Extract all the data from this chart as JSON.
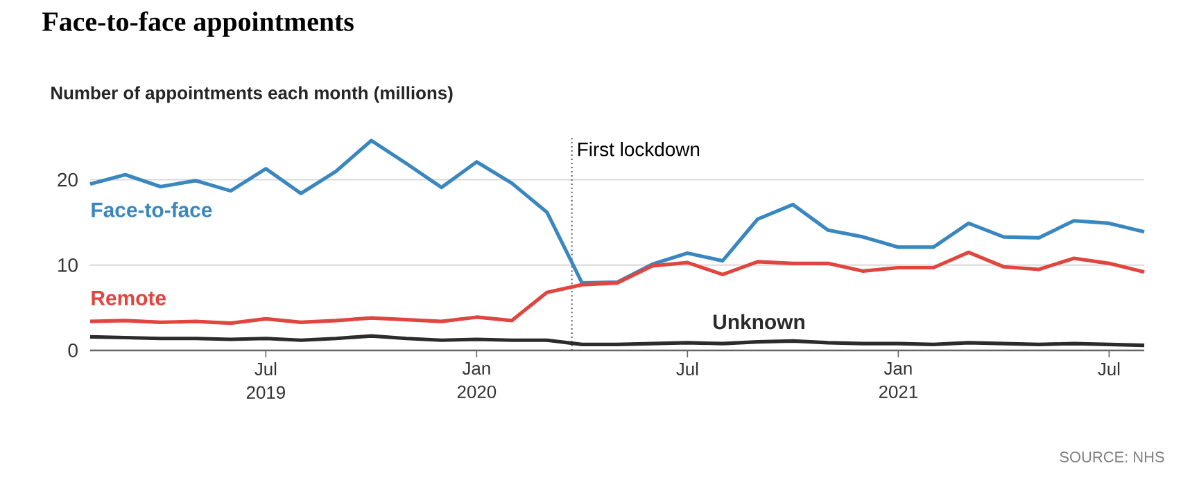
{
  "chart_data": {
    "type": "line",
    "title": "Face-to-face appointments",
    "ylabel": "Number of appointments each month (millions)",
    "x": [
      "2019-02",
      "2019-03",
      "2019-04",
      "2019-05",
      "2019-06",
      "2019-07",
      "2019-08",
      "2019-09",
      "2019-10",
      "2019-11",
      "2019-12",
      "2020-01",
      "2020-02",
      "2020-03",
      "2020-04",
      "2020-05",
      "2020-06",
      "2020-07",
      "2020-08",
      "2020-09",
      "2020-10",
      "2020-11",
      "2020-12",
      "2021-01",
      "2021-02",
      "2021-03",
      "2021-04",
      "2021-05",
      "2021-06",
      "2021-07",
      "2021-08"
    ],
    "series": [
      {
        "name": "Face-to-face",
        "color": "#3a87c0",
        "values": [
          19.5,
          20.6,
          19.2,
          19.9,
          18.7,
          21.3,
          18.4,
          21.0,
          24.6,
          21.9,
          19.1,
          22.1,
          19.6,
          16.2,
          7.9,
          8.0,
          10.1,
          11.4,
          10.5,
          15.4,
          17.1,
          14.1,
          13.3,
          12.1,
          12.1,
          14.9,
          13.3,
          13.2,
          15.2,
          14.9,
          13.9
        ]
      },
      {
        "name": "Remote",
        "color": "#e0453f",
        "values": [
          3.4,
          3.5,
          3.3,
          3.4,
          3.2,
          3.7,
          3.3,
          3.5,
          3.8,
          3.6,
          3.4,
          3.9,
          3.5,
          6.8,
          7.7,
          7.9,
          9.9,
          10.3,
          8.9,
          10.4,
          10.2,
          10.2,
          9.3,
          9.7,
          9.7,
          11.5,
          9.8,
          9.5,
          10.8,
          10.2,
          9.2
        ]
      },
      {
        "name": "Unknown",
        "color": "#2b2b2b",
        "values": [
          1.6,
          1.5,
          1.4,
          1.4,
          1.3,
          1.4,
          1.2,
          1.4,
          1.7,
          1.4,
          1.2,
          1.3,
          1.2,
          1.2,
          0.7,
          0.7,
          0.8,
          0.9,
          0.8,
          1.0,
          1.1,
          0.9,
          0.8,
          0.8,
          0.7,
          0.9,
          0.8,
          0.7,
          0.8,
          0.7,
          0.6
        ]
      }
    ],
    "xlim": [
      "2019-02",
      "2021-08"
    ],
    "xticks": [
      {
        "value": "2019-07",
        "label": "Jul 2019"
      },
      {
        "value": "2020-01",
        "label": "Jan 2020"
      },
      {
        "value": "2020-07",
        "label": "Jul"
      },
      {
        "value": "2021-01",
        "label": "Jan 2021"
      },
      {
        "value": "2021-07",
        "label": "Jul"
      }
    ],
    "ylim": [
      0,
      25
    ],
    "yticks": [
      0,
      10,
      20
    ],
    "grid": "y",
    "marker": "none",
    "line_style": "solid",
    "ref_lines": [
      {
        "axis": "x",
        "value": "2020-03-23",
        "label": "First lockdown",
        "line_style": "dotted",
        "color": "#555555"
      }
    ],
    "annotations": [
      "SOURCE: NHS"
    ]
  }
}
